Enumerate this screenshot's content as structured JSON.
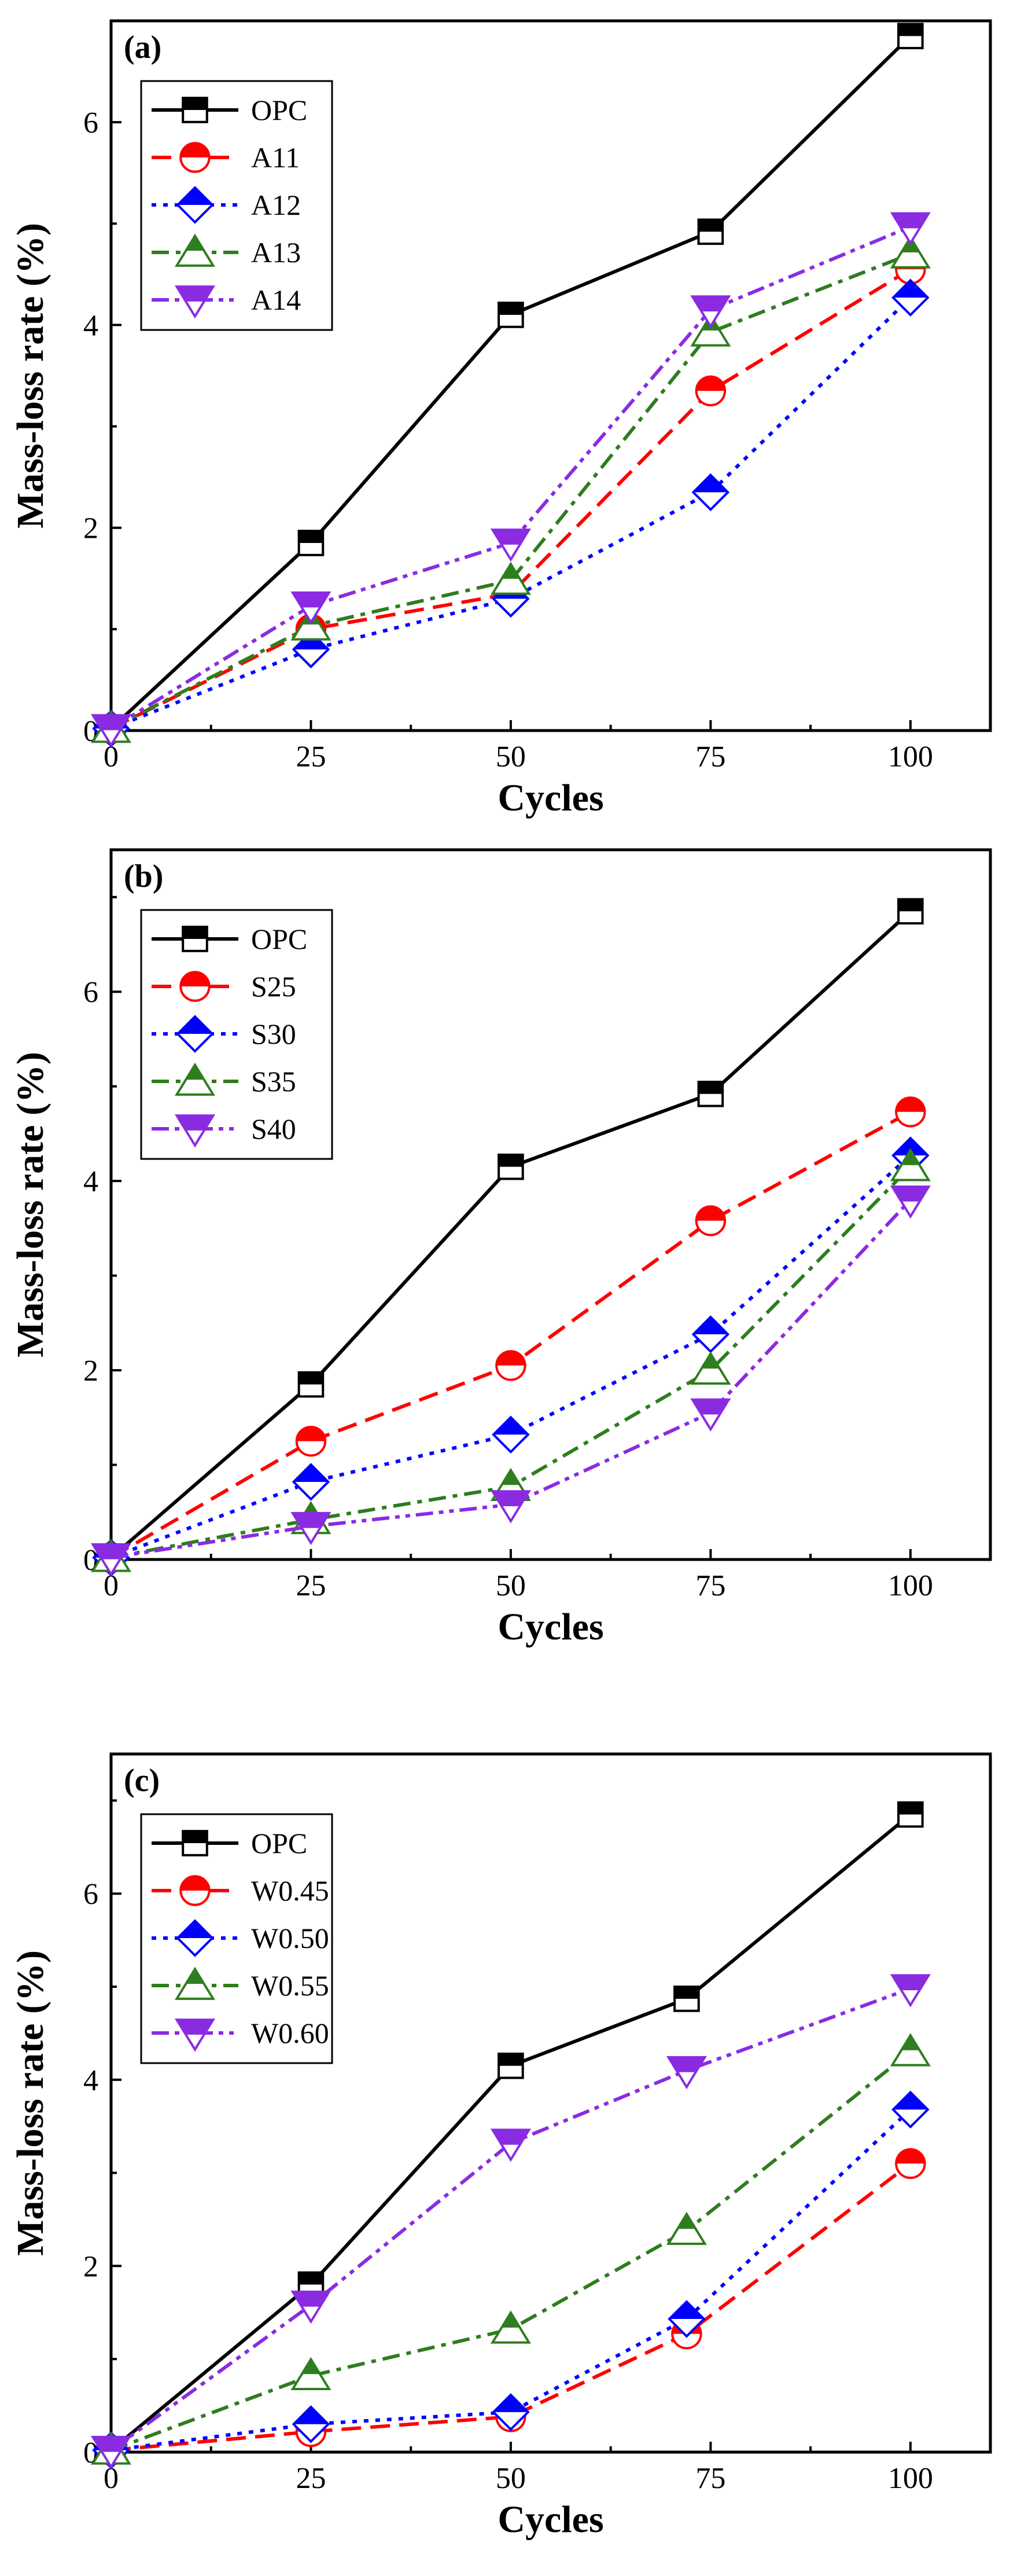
{
  "chart_data": [
    {
      "type": "line",
      "panel_label": "(a)",
      "xlabel": "Cycles",
      "ylabel": "Mass-loss rate (%)",
      "x_ticks": [
        0,
        25,
        50,
        75,
        100
      ],
      "y_ticks": [
        0,
        2,
        4,
        6
      ],
      "xlim": [
        0,
        110
      ],
      "ylim": [
        0,
        7
      ],
      "legend_position": "top-left",
      "series": [
        {
          "name": "OPC",
          "x": [
            0,
            25,
            50,
            75,
            100
          ],
          "values": [
            0.02,
            1.85,
            4.1,
            4.92,
            6.85
          ],
          "color": "#000000",
          "dash": "solid",
          "marker": "square"
        },
        {
          "name": "A11",
          "x": [
            0,
            25,
            50,
            75,
            100
          ],
          "values": [
            0.02,
            1.0,
            1.35,
            3.35,
            4.55
          ],
          "color": "#ff0000",
          "dash": "dash",
          "marker": "circle"
        },
        {
          "name": "A12",
          "x": [
            0,
            25,
            50,
            75,
            100
          ],
          "values": [
            0.02,
            0.8,
            1.3,
            2.35,
            4.27
          ],
          "color": "#0000ff",
          "dash": "dot",
          "marker": "diamond"
        },
        {
          "name": "A13",
          "x": [
            0,
            25,
            50,
            75,
            100
          ],
          "values": [
            0.02,
            1.03,
            1.48,
            3.93,
            4.7
          ],
          "color": "#2e7d1e",
          "dash": "dashdot",
          "marker": "triangle-up"
        },
        {
          "name": "A14",
          "x": [
            0,
            25,
            50,
            75,
            100
          ],
          "values": [
            0.02,
            1.23,
            1.85,
            4.15,
            4.97
          ],
          "color": "#8a2be2",
          "dash": "dashdotdot",
          "marker": "triangle-down"
        }
      ]
    },
    {
      "type": "line",
      "panel_label": "(b)",
      "xlabel": "Cycles",
      "ylabel": "Mass-loss rate (%)",
      "x_ticks": [
        0,
        25,
        50,
        75,
        100
      ],
      "y_ticks": [
        0,
        2,
        4,
        6
      ],
      "xlim": [
        0,
        110
      ],
      "ylim": [
        0,
        7.5
      ],
      "legend_position": "top-left",
      "series": [
        {
          "name": "OPC",
          "x": [
            0,
            25,
            50,
            75,
            100
          ],
          "values": [
            0.02,
            1.85,
            4.15,
            4.92,
            6.85
          ],
          "color": "#000000",
          "dash": "solid",
          "marker": "square"
        },
        {
          "name": "S25",
          "x": [
            0,
            25,
            50,
            75,
            100
          ],
          "values": [
            0.02,
            1.25,
            2.05,
            3.58,
            4.73
          ],
          "color": "#ff0000",
          "dash": "dash",
          "marker": "circle"
        },
        {
          "name": "S30",
          "x": [
            0,
            25,
            50,
            75,
            100
          ],
          "values": [
            0.02,
            0.82,
            1.32,
            2.38,
            4.27
          ],
          "color": "#0000ff",
          "dash": "dot",
          "marker": "diamond"
        },
        {
          "name": "S35",
          "x": [
            0,
            25,
            50,
            75,
            100
          ],
          "values": [
            0.02,
            0.42,
            0.77,
            2.0,
            4.15
          ],
          "color": "#2e7d1e",
          "dash": "dashdot",
          "marker": "triangle-up"
        },
        {
          "name": "S40",
          "x": [
            0,
            25,
            50,
            75,
            100
          ],
          "values": [
            0.02,
            0.35,
            0.58,
            1.55,
            3.8
          ],
          "color": "#8a2be2",
          "dash": "dashdotdot",
          "marker": "triangle-down"
        }
      ]
    },
    {
      "type": "line",
      "panel_label": "(c)",
      "xlabel": "Cycles",
      "ylabel": "Mass-loss rate (%)",
      "x_ticks": [
        0,
        25,
        50,
        75,
        100
      ],
      "y_ticks": [
        0,
        2,
        4,
        6
      ],
      "xlim": [
        0,
        110
      ],
      "ylim": [
        0,
        7.5
      ],
      "legend_position": "top-left",
      "series": [
        {
          "name": "OPC",
          "x": [
            0,
            25,
            50,
            72,
            100
          ],
          "values": [
            0.02,
            1.8,
            4.15,
            4.87,
            6.85
          ],
          "color": "#000000",
          "dash": "solid",
          "marker": "square"
        },
        {
          "name": "W0.45",
          "x": [
            0,
            25,
            50,
            72,
            100
          ],
          "values": [
            0.02,
            0.22,
            0.38,
            1.27,
            3.1
          ],
          "color": "#ff0000",
          "dash": "dash",
          "marker": "circle"
        },
        {
          "name": "W0.50",
          "x": [
            0,
            25,
            50,
            72,
            100
          ],
          "values": [
            0.02,
            0.3,
            0.43,
            1.43,
            3.68
          ],
          "color": "#0000ff",
          "dash": "dot",
          "marker": "diamond"
        },
        {
          "name": "W0.55",
          "x": [
            0,
            25,
            50,
            72,
            100
          ],
          "values": [
            0.02,
            0.82,
            1.32,
            2.38,
            4.3
          ],
          "color": "#2e7d1e",
          "dash": "dashdot",
          "marker": "triangle-up"
        },
        {
          "name": "W0.60",
          "x": [
            0,
            25,
            50,
            72,
            100
          ],
          "values": [
            0.02,
            1.58,
            3.32,
            4.1,
            4.98
          ],
          "color": "#8a2be2",
          "dash": "dashdotdot",
          "marker": "triangle-down"
        }
      ]
    }
  ]
}
